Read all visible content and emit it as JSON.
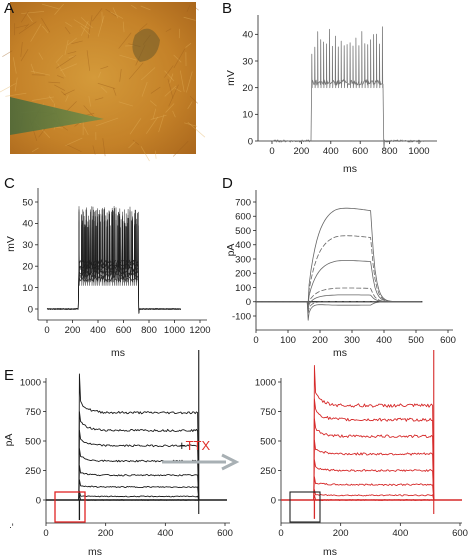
{
  "colors": {
    "trace_dark": "#3a3a3a",
    "trace_black": "#1a1a1a",
    "trace_red": "#d62a2a",
    "ttx_red": "#e0302a",
    "arrow_gray": "#a8b0b4",
    "photo_base": "#c98a2c"
  },
  "panels": {
    "A": {
      "letter": "A",
      "content": "micrograph"
    },
    "B": {
      "letter": "B",
      "ylabel": "mV",
      "xlabel": "ms"
    },
    "C": {
      "letter": "C",
      "ylabel": "mV",
      "xlabel": "ms"
    },
    "D": {
      "letter": "D",
      "ylabel": "pA",
      "xlabel": "ms"
    },
    "E": {
      "letter": "E",
      "ylabel": "pA",
      "xlabel": "ms"
    },
    "E2": {
      "xlabel": "ms"
    }
  },
  "ttx": {
    "plus": "+",
    "label": "TTX"
  },
  "stray_mark": "-.",
  "chart_data": [
    {
      "id": "B",
      "type": "line",
      "xlabel": "ms",
      "ylabel": "mV",
      "xlim": [
        0,
        1000
      ],
      "ylim": [
        0,
        45
      ],
      "xticks": [
        "0",
        "200",
        "400",
        "600",
        "800",
        "1000"
      ],
      "yticks": [
        "0",
        "10",
        "20",
        "30",
        "40"
      ],
      "step_on": 270,
      "step_off": 760,
      "baseline": 0,
      "plateau": 22,
      "spike_peak": 43
    },
    {
      "id": "C",
      "type": "line",
      "xlabel": "ms",
      "ylabel": "mV",
      "xlim": [
        0,
        1200
      ],
      "ylim": [
        0,
        50
      ],
      "xticks": [
        "0",
        "200",
        "400",
        "600",
        "800",
        "1000",
        "1200"
      ],
      "yticks": [
        "0",
        "10",
        "20",
        "30",
        "40",
        "50"
      ],
      "step_on": 250,
      "step_off": 720,
      "baseline": 0,
      "plateau": 18,
      "spike_peak": 48,
      "sweeps": 6
    },
    {
      "id": "D",
      "type": "line",
      "xlabel": "ms",
      "ylabel": "pA",
      "xlim": [
        0,
        600
      ],
      "ylim": [
        -100,
        700
      ],
      "xticks": [
        "0",
        "100",
        "200",
        "300",
        "400",
        "500",
        "600"
      ],
      "yticks": [
        "-100",
        "0",
        "100",
        "200",
        "300",
        "400",
        "500",
        "600",
        "700"
      ],
      "step_on": 160,
      "step_off": 360,
      "steady_levels": [
        -25,
        0,
        50,
        100,
        300,
        480,
        680
      ],
      "inward_peaks": [
        -130,
        -80,
        -50,
        -30,
        -20,
        -10,
        -5
      ]
    },
    {
      "id": "E",
      "type": "line",
      "xlabel": "ms",
      "ylabel": "pA",
      "xlim": [
        0,
        600
      ],
      "ylim": [
        -300,
        1000
      ],
      "xticks": [
        "0",
        "200",
        "400",
        "600"
      ],
      "yticks": [
        "0",
        "250",
        "500",
        "750",
        "1000"
      ],
      "step_on": 110,
      "step_off": 510,
      "steady_levels": [
        0,
        30,
        110,
        210,
        330,
        460,
        590,
        740
      ],
      "inward_peak": -230
    },
    {
      "id": "E2",
      "type": "line",
      "xlabel": "ms",
      "ylabel": "pA",
      "xlim": [
        0,
        600
      ],
      "ylim": [
        -300,
        1000
      ],
      "xticks": [
        "0",
        "200",
        "400",
        "600"
      ],
      "yticks": [
        "0",
        "250",
        "500",
        "750",
        "1000"
      ],
      "step_on": 110,
      "step_off": 510,
      "steady_levels": [
        0,
        40,
        130,
        250,
        390,
        540,
        680,
        800
      ],
      "inward_peak": -160
    }
  ]
}
